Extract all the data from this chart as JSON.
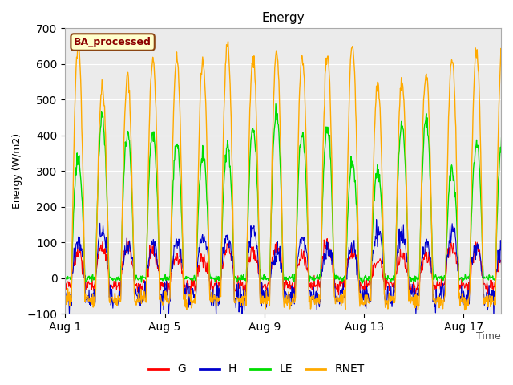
{
  "title": "Energy",
  "xlabel_right": "Time",
  "ylabel": "Energy (W/m2)",
  "legend_label": "BA_processed",
  "series_names": [
    "G",
    "H",
    "LE",
    "RNET"
  ],
  "series_colors": [
    "#ff0000",
    "#0000cc",
    "#00dd00",
    "#ffaa00"
  ],
  "ylim": [
    -100,
    700
  ],
  "xlim": [
    0,
    17.5
  ],
  "background_color": "#ebebeb",
  "grid_color": "#ffffff",
  "xtick_labels": [
    "Aug 1",
    "Aug 5",
    "Aug 9",
    "Aug 13",
    "Aug 17"
  ],
  "xtick_positions": [
    0,
    4,
    8,
    12,
    16
  ],
  "ytick_positions": [
    -100,
    0,
    100,
    200,
    300,
    400,
    500,
    600,
    700
  ],
  "num_days": 18,
  "points_per_day": 48,
  "legend_box_facecolor": "#ffffcc",
  "legend_box_edgecolor": "#8B4513",
  "legend_box_textcolor": "#8B0000",
  "figsize": [
    6.4,
    4.8
  ],
  "dpi": 100
}
